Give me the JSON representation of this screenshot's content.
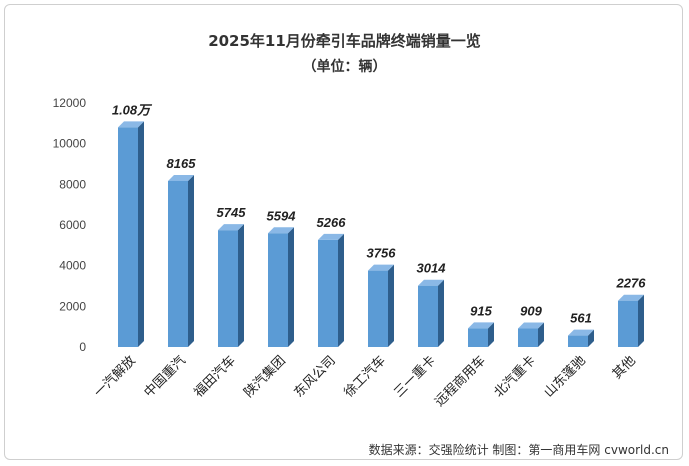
{
  "chart_data": {
    "type": "bar",
    "title": "2025年11月份牵引车品牌终端销量一览",
    "subtitle": "（单位：辆）",
    "categories": [
      "一汽解放",
      "中国重汽",
      "福田汽车",
      "陕汽集团",
      "东风公司",
      "徐工汽车",
      "三一重卡",
      "远程商用车",
      "北汽重卡",
      "山东蓬驰",
      "其他"
    ],
    "values": [
      10800,
      8165,
      5745,
      5594,
      5266,
      3756,
      3014,
      915,
      909,
      561,
      2276
    ],
    "data_labels": [
      "1.08万",
      "8165",
      "5745",
      "5594",
      "5266",
      "3756",
      "3014",
      "915",
      "909",
      "561",
      "2276"
    ],
    "ylim": [
      0,
      12000
    ],
    "yticks": [
      0,
      2000,
      4000,
      6000,
      8000,
      10000,
      12000
    ],
    "grid": false,
    "legend": "none",
    "colors": {
      "front": "#5B9BD5",
      "side": "#2E5E8C",
      "top": "#8AB8E6"
    }
  },
  "footer": "数据来源：交强险统计   制图：第一商用车网 cvworld.cn"
}
